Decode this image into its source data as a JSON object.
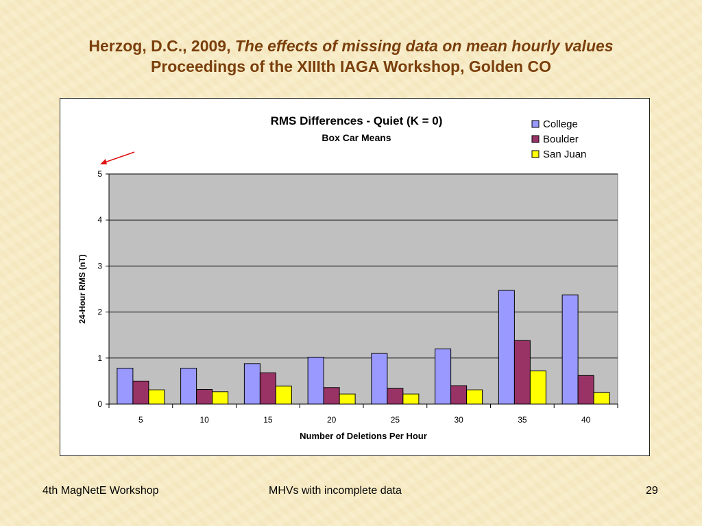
{
  "slide": {
    "title_line1_prefix": "Herzog, D.C., 2009, ",
    "title_line1_italic": "The effects of missing data on mean hourly values",
    "title_line2": "Proceedings of the XIIIth IAGA Workshop, Golden CO"
  },
  "footer": {
    "left": "4th MagNetE Workshop",
    "center": "MHVs with incomplete data",
    "page_number": "29"
  },
  "colors": {
    "title": "#7a3f0c",
    "plot_background": "#c0c0c0",
    "arrow": "#e01010"
  },
  "chart_data": {
    "type": "bar",
    "title": "RMS Differences - Quiet (K = 0)",
    "subtitle": "Box Car Means",
    "xlabel": "Number of Deletions Per Hour",
    "ylabel": "24-Hour RMS (nT)",
    "categories": [
      "5",
      "10",
      "15",
      "20",
      "25",
      "30",
      "35",
      "40"
    ],
    "ylim": [
      0,
      5
    ],
    "yticks": [
      0,
      1,
      2,
      3,
      4,
      5
    ],
    "grid": true,
    "legend_position": "top-right",
    "series": [
      {
        "name": "College",
        "color": "#9999ff",
        "values": [
          0.78,
          0.78,
          0.88,
          1.02,
          1.1,
          1.2,
          2.47,
          2.37
        ]
      },
      {
        "name": "Boulder",
        "color": "#993366",
        "values": [
          0.5,
          0.32,
          0.68,
          0.36,
          0.34,
          0.4,
          1.38,
          0.62
        ]
      },
      {
        "name": "San Juan",
        "color": "#ffff00",
        "values": [
          0.31,
          0.27,
          0.39,
          0.22,
          0.22,
          0.31,
          0.72,
          0.25
        ]
      }
    ]
  }
}
